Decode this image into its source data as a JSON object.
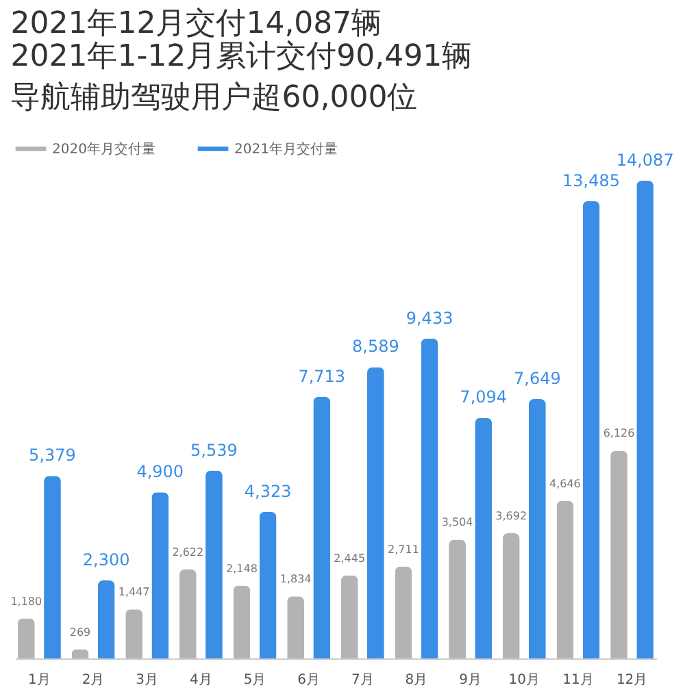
{
  "chart_data": {
    "type": "bar",
    "title": "2021年12月交付14,087辆",
    "annotations": [
      "2021年1-12月累计交付90,491辆",
      "导航辅助驾驶用户超60,000位"
    ],
    "categories": [
      "1月",
      "2月",
      "3月",
      "4月",
      "5月",
      "6月",
      "7月",
      "8月",
      "9月",
      "10月",
      "11月",
      "12月"
    ],
    "series": [
      {
        "name": "2020年月交付量",
        "color": "#b3b3b3",
        "values": [
          1180,
          269,
          1447,
          2622,
          2148,
          1834,
          2445,
          2711,
          3504,
          3692,
          4646,
          6126
        ],
        "value_labels": [
          "1,180",
          "269",
          "1,447",
          "2,622",
          "2,148",
          "1,834",
          "2,445",
          "2,711",
          "3,504",
          "3,692",
          "4,646",
          "6,126"
        ]
      },
      {
        "name": "2021年月交付量",
        "color": "#3a8ee6",
        "values": [
          5379,
          2300,
          4900,
          5539,
          4323,
          7713,
          8589,
          9433,
          7094,
          7649,
          13485,
          14087
        ],
        "value_labels": [
          "5,379",
          "2,300",
          "4,900",
          "5,539",
          "4,323",
          "7,713",
          "8,589",
          "9,433",
          "7,094",
          "7,649",
          "13,485",
          "14,087"
        ]
      }
    ],
    "tick_labels": "x",
    "legend": "top left",
    "grid": false
  }
}
